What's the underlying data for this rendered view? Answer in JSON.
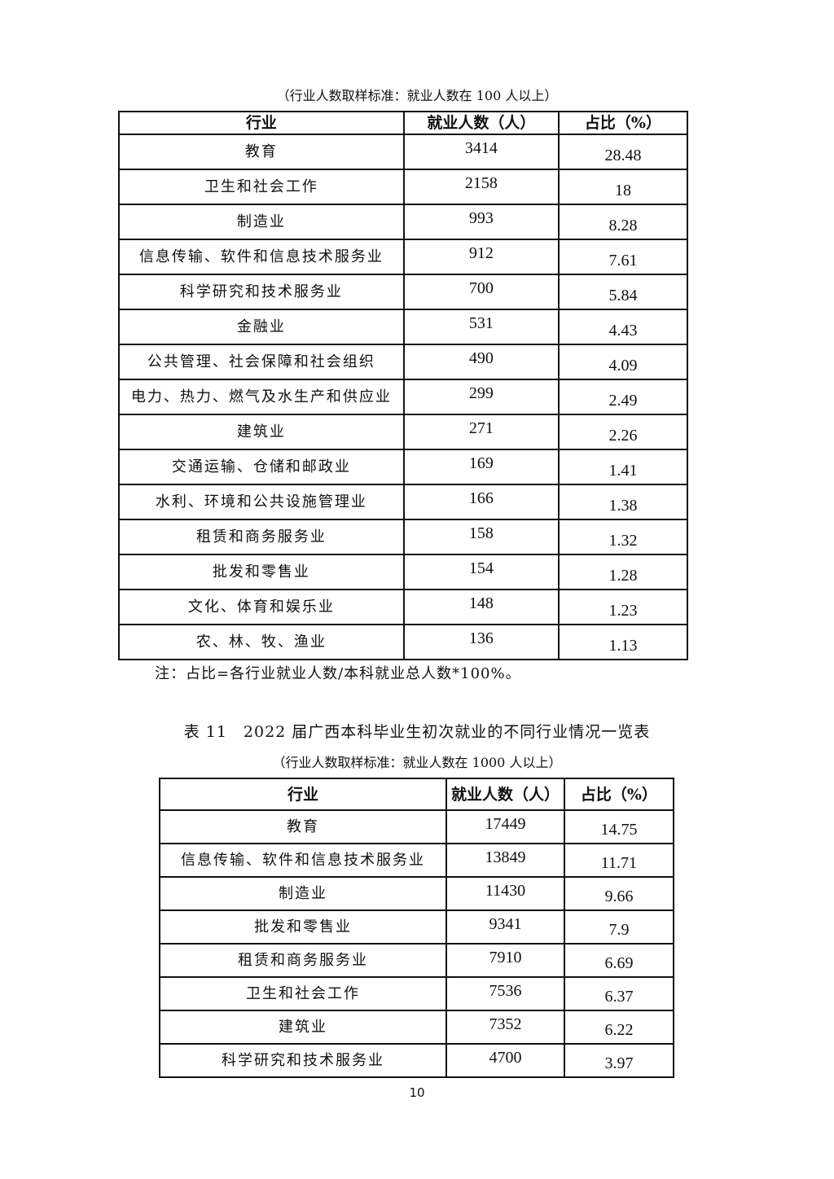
{
  "table10": {
    "subtitle": "（行业人数取样标准：就业人数在 100 人以上）",
    "headers": [
      "行业",
      "就业人数（人）",
      "占比（%）"
    ],
    "rows": [
      [
        "教育",
        "3414",
        "28.48"
      ],
      [
        "卫生和社会工作",
        "2158",
        "18"
      ],
      [
        "制造业",
        "993",
        "8.28"
      ],
      [
        "信息传输、软件和信息技术服务业",
        "912",
        "7.61"
      ],
      [
        "科学研究和技术服务业",
        "700",
        "5.84"
      ],
      [
        "金融业",
        "531",
        "4.43"
      ],
      [
        "公共管理、社会保障和社会组织",
        "490",
        "4.09"
      ],
      [
        "电力、热力、燃气及水生产和供应业",
        "299",
        "2.49"
      ],
      [
        "建筑业",
        "271",
        "2.26"
      ],
      [
        "交通运输、仓储和邮政业",
        "169",
        "1.41"
      ],
      [
        "水利、环境和公共设施管理业",
        "166",
        "1.38"
      ],
      [
        "租赁和商务服务业",
        "158",
        "1.32"
      ],
      [
        "批发和零售业",
        "154",
        "1.28"
      ],
      [
        "文化、体育和娱乐业",
        "148",
        "1.23"
      ],
      [
        "农、林、牧、渔业",
        "136",
        "1.13"
      ]
    ],
    "note": "注：占比=各行业就业人数/本科就业总人数*100%。"
  },
  "table11": {
    "title": "表 11　2022 届广西本科毕业生初次就业的不同行业情况一览表",
    "subtitle": "（行业人数取样标准：就业人数在 1000 人以上）",
    "headers": [
      "行业",
      "就业人数（人）",
      "占比（%）"
    ],
    "rows": [
      [
        "教育",
        "17449",
        "14.75"
      ],
      [
        "信息传输、软件和信息技术服务业",
        "13849",
        "11.71"
      ],
      [
        "制造业",
        "11430",
        "9.66"
      ],
      [
        "批发和零售业",
        "9341",
        "7.9"
      ],
      [
        "租赁和商务服务业",
        "7910",
        "6.69"
      ],
      [
        "卫生和社会工作",
        "7536",
        "6.37"
      ],
      [
        "建筑业",
        "7352",
        "6.22"
      ],
      [
        "科学研究和技术服务业",
        "4700",
        "3.97"
      ]
    ]
  },
  "page_number": "10"
}
